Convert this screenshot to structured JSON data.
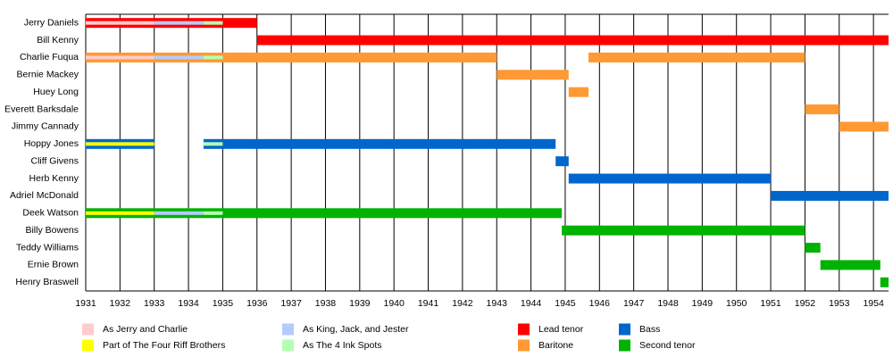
{
  "chart_data": {
    "type": "timeline",
    "xlim": [
      1931,
      1954.44
    ],
    "xticks": [
      1931,
      1932,
      1933,
      1934,
      1935,
      1936,
      1937,
      1938,
      1939,
      1940,
      1941,
      1942,
      1943,
      1944,
      1945,
      1946,
      1947,
      1948,
      1949,
      1950,
      1951,
      1952,
      1953,
      1954
    ],
    "grid": true,
    "rows": [
      {
        "name": "Jerry Daniels",
        "bars": [
          {
            "start": 1931,
            "end": 1936,
            "color": "#ff0000"
          }
        ],
        "overlays": [
          {
            "start": 1931,
            "end": 1933,
            "color": "#ffcccc"
          },
          {
            "start": 1933,
            "end": 1934.44,
            "color": "#b3ccff"
          },
          {
            "start": 1934.44,
            "end": 1935,
            "color": "#b3ffb3"
          }
        ]
      },
      {
        "name": "Bill Kenny",
        "bars": [
          {
            "start": 1936,
            "end": 1954.44,
            "color": "#ff0000"
          }
        ],
        "overlays": []
      },
      {
        "name": "Charlie Fuqua",
        "bars": [
          {
            "start": 1931,
            "end": 1943,
            "color": "#ff9933"
          },
          {
            "start": 1945.68,
            "end": 1952,
            "color": "#ff9933"
          }
        ],
        "overlays": [
          {
            "start": 1931,
            "end": 1933,
            "color": "#ffcccc"
          },
          {
            "start": 1933,
            "end": 1934.44,
            "color": "#b3ccff"
          },
          {
            "start": 1934.44,
            "end": 1935,
            "color": "#b3ffb3"
          }
        ]
      },
      {
        "name": "Bernie Mackey",
        "bars": [
          {
            "start": 1943,
            "end": 1945.1,
            "color": "#ff9933"
          }
        ],
        "overlays": []
      },
      {
        "name": "Huey Long",
        "bars": [
          {
            "start": 1945.1,
            "end": 1945.68,
            "color": "#ff9933"
          }
        ],
        "overlays": []
      },
      {
        "name": "Everett Barksdale",
        "bars": [
          {
            "start": 1952,
            "end": 1953,
            "color": "#ff9933"
          }
        ],
        "overlays": []
      },
      {
        "name": "Jimmy Cannady",
        "bars": [
          {
            "start": 1953,
            "end": 1954.44,
            "color": "#ff9933"
          }
        ],
        "overlays": []
      },
      {
        "name": "Hoppy Jones",
        "bars": [
          {
            "start": 1931,
            "end": 1933,
            "color": "#0066cc"
          },
          {
            "start": 1934.44,
            "end": 1944.72,
            "color": "#0066cc"
          }
        ],
        "overlays": [
          {
            "start": 1931,
            "end": 1933,
            "color": "#ffff00"
          },
          {
            "start": 1934.44,
            "end": 1935,
            "color": "#b3ffb3"
          }
        ]
      },
      {
        "name": "Cliff Givens",
        "bars": [
          {
            "start": 1944.72,
            "end": 1945.1,
            "color": "#0066cc"
          }
        ],
        "overlays": []
      },
      {
        "name": "Herb Kenny",
        "bars": [
          {
            "start": 1945.1,
            "end": 1951,
            "color": "#0066cc"
          }
        ],
        "overlays": []
      },
      {
        "name": "Adriel McDonald",
        "bars": [
          {
            "start": 1951,
            "end": 1954.44,
            "color": "#0066cc"
          }
        ],
        "overlays": []
      },
      {
        "name": "Deek Watson",
        "bars": [
          {
            "start": 1931,
            "end": 1944.9,
            "color": "#00b300"
          }
        ],
        "overlays": [
          {
            "start": 1931,
            "end": 1933,
            "color": "#ffff00"
          },
          {
            "start": 1933,
            "end": 1934.44,
            "color": "#b3ccff"
          },
          {
            "start": 1934.44,
            "end": 1935,
            "color": "#b3ffb3"
          }
        ]
      },
      {
        "name": "Billy Bowens",
        "bars": [
          {
            "start": 1944.9,
            "end": 1952,
            "color": "#00b300"
          }
        ],
        "overlays": []
      },
      {
        "name": "Teddy Williams",
        "bars": [
          {
            "start": 1952,
            "end": 1952.45,
            "color": "#00b300"
          }
        ],
        "overlays": []
      },
      {
        "name": "Ernie Brown",
        "bars": [
          {
            "start": 1952.45,
            "end": 1954.2,
            "color": "#00b300"
          }
        ],
        "overlays": []
      },
      {
        "name": "Henry Braswell",
        "bars": [
          {
            "start": 1954.2,
            "end": 1954.44,
            "color": "#00b300"
          }
        ],
        "overlays": []
      }
    ],
    "legend": [
      {
        "name": "As Jerry and Charlie",
        "color": "#ffcccc"
      },
      {
        "name": "Part of The Four Riff Brothers",
        "color": "#ffff00"
      },
      {
        "name": "As King, Jack, and Jester",
        "color": "#b3ccff"
      },
      {
        "name": "As The 4 Ink Spots",
        "color": "#b3ffb3"
      },
      {
        "name": "Lead tenor",
        "color": "#ff0000"
      },
      {
        "name": "Baritone",
        "color": "#ff9933"
      },
      {
        "name": "Bass",
        "color": "#0066cc"
      },
      {
        "name": "Second tenor",
        "color": "#00b300"
      }
    ]
  }
}
